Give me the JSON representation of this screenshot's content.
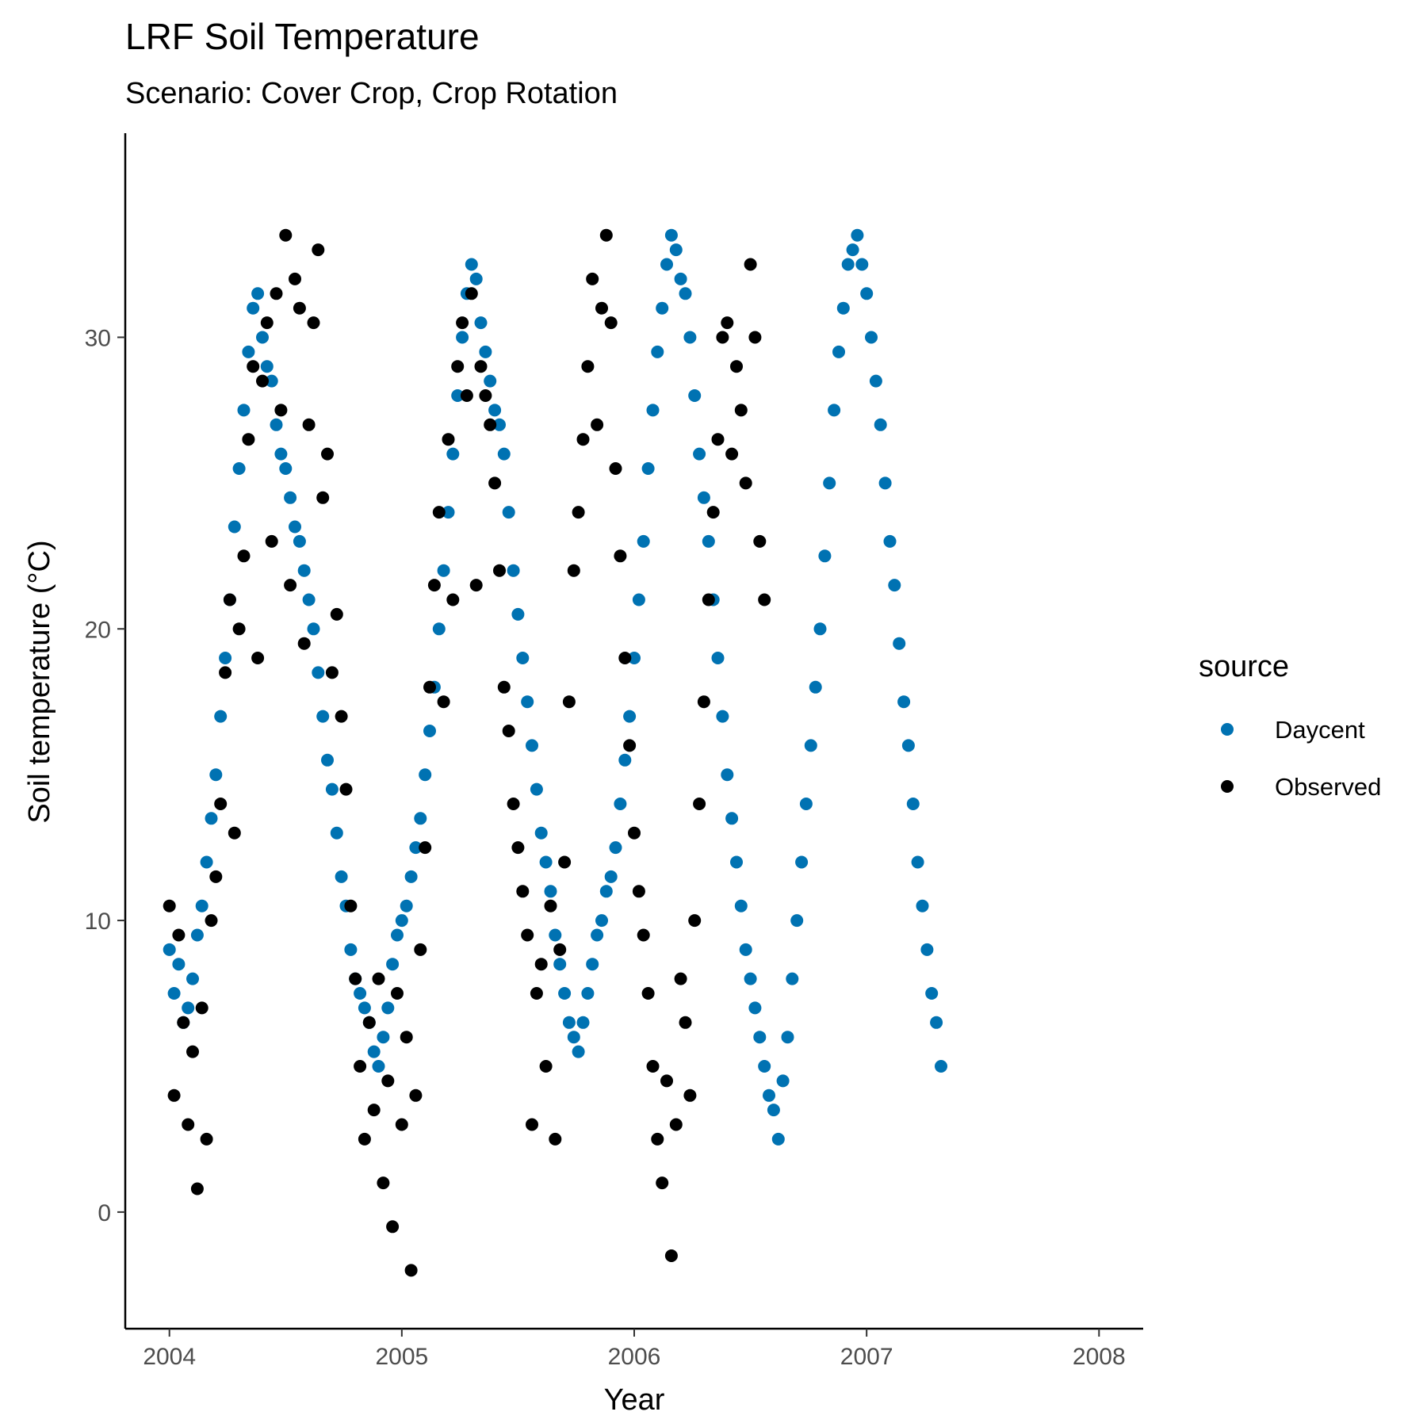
{
  "chart_data": {
    "type": "scatter",
    "title": "LRF Soil Temperature",
    "subtitle": "Scenario: Cover Crop, Crop Rotation",
    "xlabel": "Year",
    "ylabel": "Soil temperature (°C)",
    "xlim": [
      2003.81,
      2008.19
    ],
    "ylim": [
      -4.0,
      37.0
    ],
    "x_ticks": [
      2004,
      2005,
      2006,
      2007,
      2008
    ],
    "x_tick_labels": [
      "2004",
      "2005",
      "2006",
      "2007",
      "2008"
    ],
    "y_ticks": [
      0,
      10,
      20,
      30
    ],
    "y_tick_labels": [
      "0",
      "10",
      "20",
      "30"
    ],
    "grid": false,
    "legend": {
      "title": "source",
      "position": "right"
    },
    "series": [
      {
        "name": "Daycent",
        "color": "#0072B2",
        "points": [
          [
            2004.0,
            9.0
          ],
          [
            2004.02,
            7.5
          ],
          [
            2004.04,
            8.5
          ],
          [
            2004.06,
            6.5
          ],
          [
            2004.08,
            7.0
          ],
          [
            2004.1,
            8.0
          ],
          [
            2004.12,
            9.5
          ],
          [
            2004.14,
            10.5
          ],
          [
            2004.16,
            12.0
          ],
          [
            2004.18,
            13.5
          ],
          [
            2004.2,
            15.0
          ],
          [
            2004.22,
            17.0
          ],
          [
            2004.24,
            19.0
          ],
          [
            2004.26,
            21.0
          ],
          [
            2004.28,
            23.5
          ],
          [
            2004.3,
            25.5
          ],
          [
            2004.32,
            27.5
          ],
          [
            2004.34,
            29.5
          ],
          [
            2004.36,
            31.0
          ],
          [
            2004.38,
            31.5
          ],
          [
            2004.4,
            30.0
          ],
          [
            2004.42,
            29.0
          ],
          [
            2004.44,
            28.5
          ],
          [
            2004.46,
            27.0
          ],
          [
            2004.48,
            26.0
          ],
          [
            2004.5,
            25.5
          ],
          [
            2004.52,
            24.5
          ],
          [
            2004.54,
            23.5
          ],
          [
            2004.56,
            23.0
          ],
          [
            2004.58,
            22.0
          ],
          [
            2004.6,
            21.0
          ],
          [
            2004.62,
            20.0
          ],
          [
            2004.64,
            18.5
          ],
          [
            2004.66,
            17.0
          ],
          [
            2004.68,
            15.5
          ],
          [
            2004.7,
            14.5
          ],
          [
            2004.72,
            13.0
          ],
          [
            2004.74,
            11.5
          ],
          [
            2004.76,
            10.5
          ],
          [
            2004.78,
            9.0
          ],
          [
            2004.8,
            8.0
          ],
          [
            2004.82,
            7.5
          ],
          [
            2004.84,
            7.0
          ],
          [
            2004.86,
            6.5
          ],
          [
            2004.88,
            5.5
          ],
          [
            2004.9,
            5.0
          ],
          [
            2004.92,
            6.0
          ],
          [
            2004.94,
            7.0
          ],
          [
            2004.96,
            8.5
          ],
          [
            2004.98,
            9.5
          ],
          [
            2005.0,
            10.0
          ],
          [
            2005.02,
            10.5
          ],
          [
            2005.04,
            11.5
          ],
          [
            2005.06,
            12.5
          ],
          [
            2005.08,
            13.5
          ],
          [
            2005.1,
            15.0
          ],
          [
            2005.12,
            16.5
          ],
          [
            2005.14,
            18.0
          ],
          [
            2005.16,
            20.0
          ],
          [
            2005.18,
            22.0
          ],
          [
            2005.2,
            24.0
          ],
          [
            2005.22,
            26.0
          ],
          [
            2005.24,
            28.0
          ],
          [
            2005.26,
            30.0
          ],
          [
            2005.28,
            31.5
          ],
          [
            2005.3,
            32.5
          ],
          [
            2005.32,
            32.0
          ],
          [
            2005.34,
            30.5
          ],
          [
            2005.36,
            29.5
          ],
          [
            2005.38,
            28.5
          ],
          [
            2005.4,
            27.5
          ],
          [
            2005.42,
            27.0
          ],
          [
            2005.44,
            26.0
          ],
          [
            2005.46,
            24.0
          ],
          [
            2005.48,
            22.0
          ],
          [
            2005.5,
            20.5
          ],
          [
            2005.52,
            19.0
          ],
          [
            2005.54,
            17.5
          ],
          [
            2005.56,
            16.0
          ],
          [
            2005.58,
            14.5
          ],
          [
            2005.6,
            13.0
          ],
          [
            2005.62,
            12.0
          ],
          [
            2005.64,
            11.0
          ],
          [
            2005.66,
            9.5
          ],
          [
            2005.68,
            8.5
          ],
          [
            2005.7,
            7.5
          ],
          [
            2005.72,
            6.5
          ],
          [
            2005.74,
            6.0
          ],
          [
            2005.76,
            5.5
          ],
          [
            2005.78,
            6.5
          ],
          [
            2005.8,
            7.5
          ],
          [
            2005.82,
            8.5
          ],
          [
            2005.84,
            9.5
          ],
          [
            2005.86,
            10.0
          ],
          [
            2005.88,
            11.0
          ],
          [
            2005.9,
            11.5
          ],
          [
            2005.92,
            12.5
          ],
          [
            2005.94,
            14.0
          ],
          [
            2005.96,
            15.5
          ],
          [
            2005.98,
            17.0
          ],
          [
            2006.0,
            19.0
          ],
          [
            2006.02,
            21.0
          ],
          [
            2006.04,
            23.0
          ],
          [
            2006.06,
            25.5
          ],
          [
            2006.08,
            27.5
          ],
          [
            2006.1,
            29.5
          ],
          [
            2006.12,
            31.0
          ],
          [
            2006.14,
            32.5
          ],
          [
            2006.16,
            33.5
          ],
          [
            2006.18,
            33.0
          ],
          [
            2006.2,
            32.0
          ],
          [
            2006.22,
            31.5
          ],
          [
            2006.24,
            30.0
          ],
          [
            2006.26,
            28.0
          ],
          [
            2006.28,
            26.0
          ],
          [
            2006.3,
            24.5
          ],
          [
            2006.32,
            23.0
          ],
          [
            2006.34,
            21.0
          ],
          [
            2006.36,
            19.0
          ],
          [
            2006.38,
            17.0
          ],
          [
            2006.4,
            15.0
          ],
          [
            2006.42,
            13.5
          ],
          [
            2006.44,
            12.0
          ],
          [
            2006.46,
            10.5
          ],
          [
            2006.48,
            9.0
          ],
          [
            2006.5,
            8.0
          ],
          [
            2006.52,
            7.0
          ],
          [
            2006.54,
            6.0
          ],
          [
            2006.56,
            5.0
          ],
          [
            2006.58,
            4.0
          ],
          [
            2006.6,
            3.5
          ],
          [
            2006.62,
            2.5
          ],
          [
            2006.64,
            4.5
          ],
          [
            2006.66,
            6.0
          ],
          [
            2006.68,
            8.0
          ],
          [
            2006.7,
            10.0
          ],
          [
            2006.72,
            12.0
          ],
          [
            2006.74,
            14.0
          ],
          [
            2006.76,
            16.0
          ],
          [
            2006.78,
            18.0
          ],
          [
            2006.8,
            20.0
          ],
          [
            2006.82,
            22.5
          ],
          [
            2006.84,
            25.0
          ],
          [
            2006.86,
            27.5
          ],
          [
            2006.88,
            29.5
          ],
          [
            2006.9,
            31.0
          ],
          [
            2006.92,
            32.5
          ],
          [
            2006.94,
            33.0
          ],
          [
            2006.96,
            33.5
          ],
          [
            2006.98,
            32.5
          ],
          [
            2007.0,
            31.5
          ],
          [
            2007.02,
            30.0
          ],
          [
            2007.04,
            28.5
          ],
          [
            2007.06,
            27.0
          ],
          [
            2007.08,
            25.0
          ],
          [
            2007.1,
            23.0
          ],
          [
            2007.12,
            21.5
          ],
          [
            2007.14,
            19.5
          ],
          [
            2007.16,
            17.5
          ],
          [
            2007.18,
            16.0
          ],
          [
            2007.2,
            14.0
          ],
          [
            2007.22,
            12.0
          ],
          [
            2007.24,
            10.5
          ],
          [
            2007.26,
            9.0
          ],
          [
            2007.28,
            7.5
          ],
          [
            2007.3,
            6.5
          ],
          [
            2007.32,
            5.0
          ]
        ]
      },
      {
        "name": "Observed",
        "color": "#000000",
        "points": [
          [
            2004.0,
            10.5
          ],
          [
            2004.02,
            4.0
          ],
          [
            2004.04,
            9.5
          ],
          [
            2004.06,
            6.5
          ],
          [
            2004.08,
            3.0
          ],
          [
            2004.1,
            5.5
          ],
          [
            2004.12,
            0.8
          ],
          [
            2004.14,
            7.0
          ],
          [
            2004.16,
            2.5
          ],
          [
            2004.18,
            10.0
          ],
          [
            2004.2,
            11.5
          ],
          [
            2004.22,
            14.0
          ],
          [
            2004.24,
            18.5
          ],
          [
            2004.26,
            21.0
          ],
          [
            2004.28,
            13.0
          ],
          [
            2004.3,
            20.0
          ],
          [
            2004.32,
            22.5
          ],
          [
            2004.34,
            26.5
          ],
          [
            2004.36,
            29.0
          ],
          [
            2004.38,
            19.0
          ],
          [
            2004.4,
            28.5
          ],
          [
            2004.42,
            30.5
          ],
          [
            2004.44,
            23.0
          ],
          [
            2004.46,
            31.5
          ],
          [
            2004.48,
            27.5
          ],
          [
            2004.5,
            33.5
          ],
          [
            2004.52,
            21.5
          ],
          [
            2004.54,
            32.0
          ],
          [
            2004.56,
            31.0
          ],
          [
            2004.58,
            19.5
          ],
          [
            2004.6,
            27.0
          ],
          [
            2004.62,
            30.5
          ],
          [
            2004.64,
            33.0
          ],
          [
            2004.66,
            24.5
          ],
          [
            2004.68,
            26.0
          ],
          [
            2004.7,
            18.5
          ],
          [
            2004.72,
            20.5
          ],
          [
            2004.74,
            17.0
          ],
          [
            2004.76,
            14.5
          ],
          [
            2004.78,
            10.5
          ],
          [
            2004.8,
            8.0
          ],
          [
            2004.82,
            5.0
          ],
          [
            2004.84,
            2.5
          ],
          [
            2004.86,
            6.5
          ],
          [
            2004.88,
            3.5
          ],
          [
            2004.9,
            8.0
          ],
          [
            2004.92,
            1.0
          ],
          [
            2004.94,
            4.5
          ],
          [
            2004.96,
            -0.5
          ],
          [
            2004.98,
            7.5
          ],
          [
            2005.0,
            3.0
          ],
          [
            2005.02,
            6.0
          ],
          [
            2005.04,
            -2.0
          ],
          [
            2005.06,
            4.0
          ],
          [
            2005.08,
            9.0
          ],
          [
            2005.1,
            12.5
          ],
          [
            2005.12,
            18.0
          ],
          [
            2005.14,
            21.5
          ],
          [
            2005.16,
            24.0
          ],
          [
            2005.18,
            17.5
          ],
          [
            2005.2,
            26.5
          ],
          [
            2005.22,
            21.0
          ],
          [
            2005.24,
            29.0
          ],
          [
            2005.26,
            30.5
          ],
          [
            2005.28,
            28.0
          ],
          [
            2005.3,
            31.5
          ],
          [
            2005.32,
            21.5
          ],
          [
            2005.34,
            29.0
          ],
          [
            2005.36,
            28.0
          ],
          [
            2005.38,
            27.0
          ],
          [
            2005.4,
            25.0
          ],
          [
            2005.42,
            22.0
          ],
          [
            2005.44,
            18.0
          ],
          [
            2005.46,
            16.5
          ],
          [
            2005.48,
            14.0
          ],
          [
            2005.5,
            12.5
          ],
          [
            2005.52,
            11.0
          ],
          [
            2005.54,
            9.5
          ],
          [
            2005.56,
            3.0
          ],
          [
            2005.58,
            7.5
          ],
          [
            2005.6,
            8.5
          ],
          [
            2005.62,
            5.0
          ],
          [
            2005.64,
            10.5
          ],
          [
            2005.66,
            2.5
          ],
          [
            2005.68,
            9.0
          ],
          [
            2005.7,
            12.0
          ],
          [
            2005.72,
            17.5
          ],
          [
            2005.74,
            22.0
          ],
          [
            2005.76,
            24.0
          ],
          [
            2005.78,
            26.5
          ],
          [
            2005.8,
            29.0
          ],
          [
            2005.82,
            32.0
          ],
          [
            2005.84,
            27.0
          ],
          [
            2005.86,
            31.0
          ],
          [
            2005.88,
            33.5
          ],
          [
            2005.9,
            30.5
          ],
          [
            2005.92,
            25.5
          ],
          [
            2005.94,
            22.5
          ],
          [
            2005.96,
            19.0
          ],
          [
            2005.98,
            16.0
          ],
          [
            2006.0,
            13.0
          ],
          [
            2006.02,
            11.0
          ],
          [
            2006.04,
            9.5
          ],
          [
            2006.06,
            7.5
          ],
          [
            2006.08,
            5.0
          ],
          [
            2006.1,
            2.5
          ],
          [
            2006.12,
            1.0
          ],
          [
            2006.14,
            4.5
          ],
          [
            2006.16,
            -1.5
          ],
          [
            2006.18,
            3.0
          ],
          [
            2006.2,
            8.0
          ],
          [
            2006.22,
            6.5
          ],
          [
            2006.24,
            4.0
          ],
          [
            2006.26,
            10.0
          ],
          [
            2006.28,
            14.0
          ],
          [
            2006.3,
            17.5
          ],
          [
            2006.32,
            21.0
          ],
          [
            2006.34,
            24.0
          ],
          [
            2006.36,
            26.5
          ],
          [
            2006.38,
            30.0
          ],
          [
            2006.4,
            30.5
          ],
          [
            2006.42,
            26.0
          ],
          [
            2006.44,
            29.0
          ],
          [
            2006.46,
            27.5
          ],
          [
            2006.48,
            25.0
          ],
          [
            2006.5,
            32.5
          ],
          [
            2006.52,
            30.0
          ],
          [
            2006.54,
            23.0
          ],
          [
            2006.56,
            21.0
          ]
        ]
      }
    ]
  }
}
